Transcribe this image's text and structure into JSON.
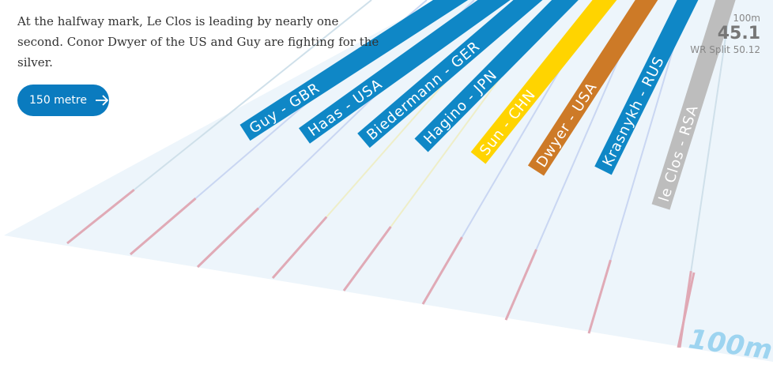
{
  "intro": "At the halfway mark, Le Clos is leading by nearly one second. Conor Dwyer of the US and Guy are fighting for the silver.",
  "button": {
    "label": "150 metre"
  },
  "swimmers": [
    {
      "label": "Guy - GBR",
      "color": "#0f87c6"
    },
    {
      "label": "Haas - USA",
      "color": "#0f87c6"
    },
    {
      "label": "Biedermann - GER",
      "color": "#0f87c6"
    },
    {
      "label": "Hagino - JPN",
      "color": "#0f87c6"
    },
    {
      "label": "Sun - CHN",
      "color": "#ffd400"
    },
    {
      "label": "Dwyer - USA",
      "color": "#cd7a27"
    },
    {
      "label": "Krasnykh - RUS",
      "color": "#0f87c6"
    },
    {
      "label": "le Clos - RSA",
      "color": "#bdbdbd"
    }
  ],
  "split": {
    "distance": "100m",
    "time": "45.1",
    "record": "WR Split 50.12"
  },
  "pool_marker": "100m"
}
